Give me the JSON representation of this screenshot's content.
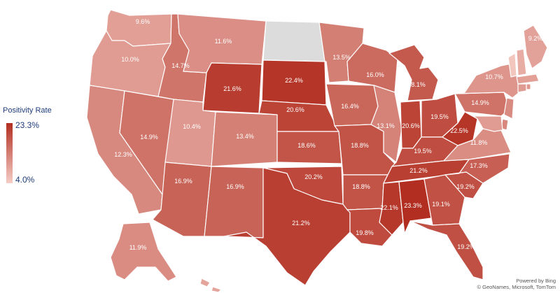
{
  "legend": {
    "title": "Positivity Rate",
    "max_label": "23.3%",
    "min_label": "4.0%",
    "max_value": 23.3,
    "min_value": 4.0,
    "color_high": "#b22e20",
    "color_low": "#f5cdc6"
  },
  "attribution": {
    "line1": "Powered by Bing",
    "line2": "© GeoNames, Microsoft, TomTom"
  },
  "no_data_color": "#dcdcdc",
  "states": [
    {
      "code": "WA",
      "label": "9.6%"
    },
    {
      "code": "OR",
      "label": "10.0%"
    },
    {
      "code": "CA",
      "label": "12.3%"
    },
    {
      "code": "NV",
      "label": "14.9%"
    },
    {
      "code": "ID",
      "label": "14.7%"
    },
    {
      "code": "MT",
      "label": "11.6%"
    },
    {
      "code": "WY",
      "label": "21.6%"
    },
    {
      "code": "UT",
      "label": "10.4%"
    },
    {
      "code": "AZ",
      "label": "16.9%"
    },
    {
      "code": "CO",
      "label": "13.4%"
    },
    {
      "code": "NM",
      "label": "16.9%"
    },
    {
      "code": "ND",
      "label": ""
    },
    {
      "code": "SD",
      "label": "22.4%"
    },
    {
      "code": "NE",
      "label": "20.6%"
    },
    {
      "code": "KS",
      "label": "18.6%"
    },
    {
      "code": "OK",
      "label": "20.2%"
    },
    {
      "code": "TX",
      "label": "21.2%"
    },
    {
      "code": "MN",
      "label": "13.5%"
    },
    {
      "code": "IA",
      "label": "16.4%"
    },
    {
      "code": "MO",
      "label": "18.8%"
    },
    {
      "code": "AR",
      "label": "18.8%"
    },
    {
      "code": "LA",
      "label": "19.8%"
    },
    {
      "code": "WI",
      "label": "16.0%"
    },
    {
      "code": "IL",
      "label": "13.1%"
    },
    {
      "code": "MI",
      "label": "18.1%"
    },
    {
      "code": "IN",
      "label": "20.6%"
    },
    {
      "code": "OH",
      "label": "19.5%"
    },
    {
      "code": "KY",
      "label": "19.5%"
    },
    {
      "code": "TN",
      "label": "21.2%"
    },
    {
      "code": "MS",
      "label": "22.1%"
    },
    {
      "code": "AL",
      "label": "23.3%"
    },
    {
      "code": "GA",
      "label": "19.1%"
    },
    {
      "code": "FL",
      "label": "19.2%"
    },
    {
      "code": "SC",
      "label": "19.2%"
    },
    {
      "code": "NC",
      "label": "17.3%"
    },
    {
      "code": "VA",
      "label": "11.8%"
    },
    {
      "code": "WV",
      "label": "22.5%"
    },
    {
      "code": "PA",
      "label": "14.9%"
    },
    {
      "code": "NY",
      "label": "10.7%"
    },
    {
      "code": "ME",
      "label": "9.2%"
    },
    {
      "code": "VT",
      "label": ""
    },
    {
      "code": "NH",
      "label": ""
    },
    {
      "code": "MA",
      "label": ""
    },
    {
      "code": "CT",
      "label": ""
    },
    {
      "code": "RI",
      "label": ""
    },
    {
      "code": "NJ",
      "label": ""
    },
    {
      "code": "DE",
      "label": ""
    },
    {
      "code": "MD",
      "label": ""
    },
    {
      "code": "AK",
      "label": "11.9%"
    },
    {
      "code": "HI",
      "label": ""
    }
  ],
  "unlabeled_state_values": {
    "VT": 5.0,
    "NH": 8.0,
    "MA": 9.5,
    "CT": 10.0,
    "RI": 10.5,
    "NJ": 12.0,
    "DE": 12.5,
    "MD": 10.0,
    "HI": 9.0
  }
}
